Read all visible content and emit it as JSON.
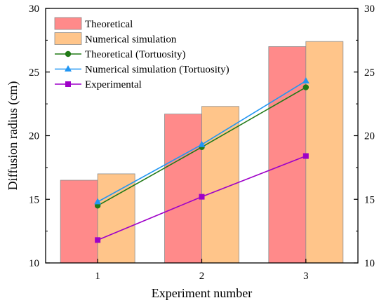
{
  "chart_data": {
    "type": "bar",
    "categories": [
      "1",
      "2",
      "3"
    ],
    "xlabel": "Experiment number",
    "ylabel": "Diffusion radius (cm)",
    "ylim": [
      10,
      30
    ],
    "yticks": [
      10,
      15,
      20,
      25,
      30
    ],
    "right_axis_mirrored": true,
    "grid": false,
    "legend_position": "top-left",
    "bar_series": [
      {
        "name": "Theoretical",
        "values": [
          16.5,
          21.7,
          27.0
        ],
        "color": "#ff8a8a"
      },
      {
        "name": "Numerical simulation",
        "values": [
          17.0,
          22.3,
          27.4
        ],
        "color": "#ffc58a"
      }
    ],
    "line_series": [
      {
        "name": "Theoretical (Tortuosity)",
        "values": [
          14.5,
          19.1,
          23.8
        ],
        "color": "#217a17",
        "marker": "circle"
      },
      {
        "name": "Numerical simulation (Tortuosity)",
        "values": [
          14.8,
          19.3,
          24.3
        ],
        "color": "#2196f3",
        "marker": "triangle"
      },
      {
        "name": "Experimental",
        "values": [
          11.8,
          15.2,
          18.4
        ],
        "color": "#9e00c8",
        "marker": "square"
      }
    ]
  }
}
